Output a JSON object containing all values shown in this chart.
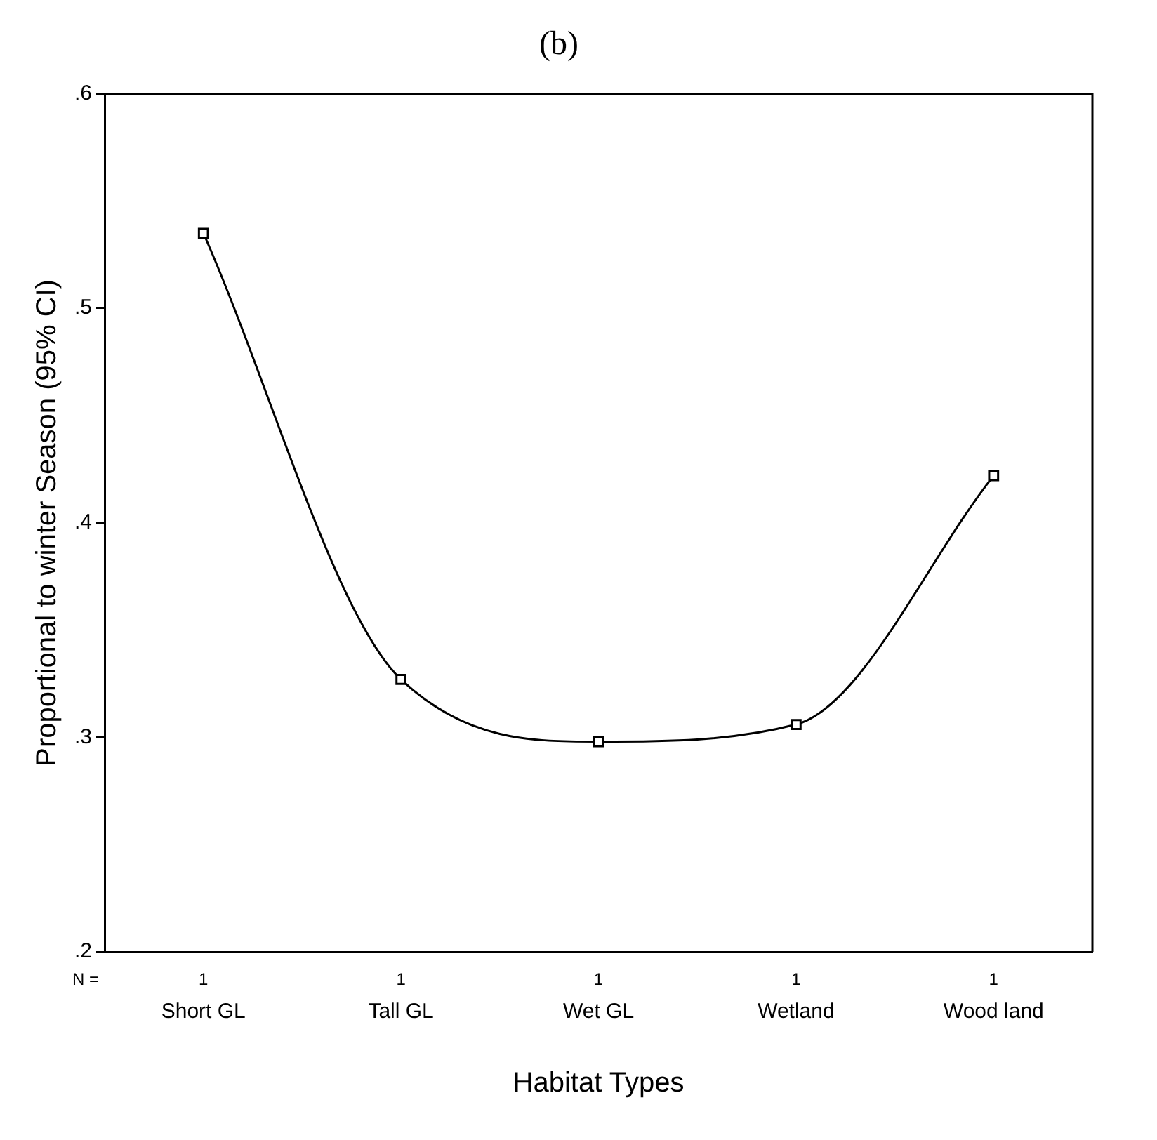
{
  "chart_data": {
    "type": "line",
    "title": "(b)",
    "xlabel": "Habitat Types",
    "ylabel": "Proportional to winter Season (95% CI)",
    "categories": [
      "Short GL",
      "Tall GL",
      "Wet GL",
      "Wetland",
      "Wood land"
    ],
    "series": [
      {
        "color": "#000000",
        "values": [
          0.535,
          0.327,
          0.298,
          0.306,
          0.422
        ]
      }
    ],
    "ylim": [
      0.2,
      0.6
    ],
    "yticks": [
      {
        "value": 0.2,
        "label": ".2"
      },
      {
        "value": 0.3,
        "label": ".3"
      },
      {
        "value": 0.4,
        "label": ".4"
      },
      {
        "value": 0.5,
        "label": ".5"
      },
      {
        "value": 0.6,
        "label": ".6"
      }
    ],
    "grid": false,
    "legend": false,
    "marker": "square",
    "line_style": "solid",
    "annotations": [
      "N =",
      "1",
      "1",
      "1",
      "1",
      "1"
    ]
  }
}
